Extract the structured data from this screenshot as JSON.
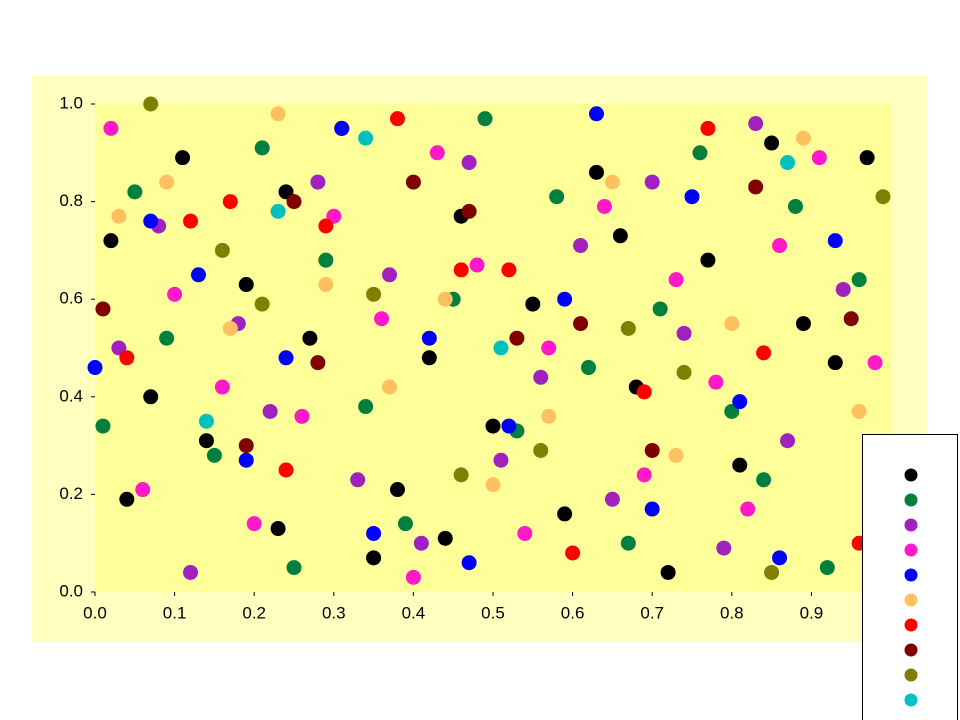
{
  "chart_data": {
    "type": "scatter",
    "xlim": [
      0,
      1
    ],
    "ylim": [
      0,
      1
    ],
    "xticks": [
      {
        "value": 0,
        "label": "0.0"
      },
      {
        "value": 0.1,
        "label": "0.1"
      },
      {
        "value": 0.2,
        "label": "0.2"
      },
      {
        "value": 0.3,
        "label": "0.3"
      },
      {
        "value": 0.4,
        "label": "0.4"
      },
      {
        "value": 0.5,
        "label": "0.5"
      },
      {
        "value": 0.6,
        "label": "0.6"
      },
      {
        "value": 0.7,
        "label": "0.7"
      },
      {
        "value": 0.8,
        "label": "0.8"
      },
      {
        "value": 0.9,
        "label": "0.9"
      }
    ],
    "yticks": [
      {
        "value": 0,
        "label": "0.0"
      },
      {
        "value": 0.2,
        "label": "0.2"
      },
      {
        "value": 0.4,
        "label": "0.4"
      },
      {
        "value": 0.6,
        "label": "0.6"
      },
      {
        "value": 0.8,
        "label": "0.8"
      },
      {
        "value": 1,
        "label": "1.0"
      }
    ],
    "legend": "bottom-right",
    "series": [
      {
        "color": "#000000",
        "x": [
          0.02,
          0.07,
          0.11,
          0.14,
          0.19,
          0.23,
          0.27,
          0.31,
          0.35,
          0.38,
          0.42,
          0.46,
          0.5,
          0.55,
          0.59,
          0.63,
          0.68,
          0.72,
          0.77,
          0.81,
          0.85,
          0.89,
          0.97,
          0.04,
          0.24,
          0.44,
          0.66,
          0.93
        ],
        "values": [
          0.72,
          0.4,
          0.89,
          0.31,
          0.63,
          0.13,
          0.52,
          0.95,
          0.07,
          0.21,
          0.48,
          0.77,
          0.34,
          0.59,
          0.16,
          0.86,
          0.42,
          0.04,
          0.68,
          0.26,
          0.92,
          0.55,
          0.89,
          0.19,
          0.82,
          0.11,
          0.73,
          0.47
        ]
      },
      {
        "color": "#007f3f",
        "x": [
          0.05,
          0.09,
          0.15,
          0.21,
          0.25,
          0.29,
          0.34,
          0.39,
          0.45,
          0.49,
          0.53,
          0.58,
          0.62,
          0.67,
          0.71,
          0.76,
          0.8,
          0.84,
          0.88,
          0.92,
          0.96,
          0.01
        ],
        "values": [
          0.82,
          0.52,
          0.28,
          0.91,
          0.05,
          0.68,
          0.38,
          0.14,
          0.6,
          0.97,
          0.33,
          0.81,
          0.46,
          0.1,
          0.58,
          0.9,
          0.37,
          0.23,
          0.79,
          0.05,
          0.64,
          0.34
        ]
      },
      {
        "color": "#a020c0",
        "x": [
          0.03,
          0.08,
          0.12,
          0.18,
          0.22,
          0.28,
          0.33,
          0.37,
          0.41,
          0.47,
          0.51,
          0.56,
          0.61,
          0.65,
          0.7,
          0.74,
          0.79,
          0.83,
          0.87,
          0.94
        ],
        "values": [
          0.5,
          0.75,
          0.04,
          0.55,
          0.37,
          0.84,
          0.23,
          0.65,
          0.1,
          0.88,
          0.27,
          0.44,
          0.71,
          0.19,
          0.84,
          0.53,
          0.09,
          0.96,
          0.31,
          0.62
        ]
      },
      {
        "color": "#ff19c8",
        "x": [
          0.02,
          0.06,
          0.1,
          0.16,
          0.2,
          0.26,
          0.3,
          0.36,
          0.4,
          0.43,
          0.48,
          0.54,
          0.57,
          0.64,
          0.69,
          0.73,
          0.78,
          0.82,
          0.86,
          0.91,
          0.98
        ],
        "values": [
          0.95,
          0.21,
          0.61,
          0.42,
          0.14,
          0.36,
          0.77,
          0.56,
          0.03,
          0.9,
          0.67,
          0.12,
          0.5,
          0.79,
          0.24,
          0.64,
          0.43,
          0.17,
          0.71,
          0.89,
          0.47
        ]
      },
      {
        "color": "#0000ff",
        "x": [
          0.0,
          0.07,
          0.13,
          0.19,
          0.24,
          0.31,
          0.35,
          0.42,
          0.47,
          0.52,
          0.59,
          0.63,
          0.7,
          0.75,
          0.81,
          0.86,
          0.93
        ],
        "values": [
          0.46,
          0.76,
          0.65,
          0.27,
          0.48,
          0.95,
          0.12,
          0.52,
          0.06,
          0.34,
          0.6,
          0.98,
          0.17,
          0.81,
          0.39,
          0.07,
          0.72
        ]
      },
      {
        "color": "#ffc060",
        "x": [
          0.03,
          0.09,
          0.17,
          0.23,
          0.29,
          0.37,
          0.44,
          0.5,
          0.57,
          0.65,
          0.73,
          0.8,
          0.89,
          0.96
        ],
        "values": [
          0.77,
          0.84,
          0.54,
          0.98,
          0.63,
          0.42,
          0.6,
          0.22,
          0.36,
          0.84,
          0.28,
          0.55,
          0.93,
          0.37
        ]
      },
      {
        "color": "#ff0000",
        "x": [
          0.04,
          0.12,
          0.17,
          0.24,
          0.29,
          0.38,
          0.46,
          0.52,
          0.6,
          0.69,
          0.77,
          0.84,
          0.96
        ],
        "values": [
          0.48,
          0.76,
          0.8,
          0.25,
          0.75,
          0.97,
          0.66,
          0.66,
          0.08,
          0.41,
          0.95,
          0.49,
          0.1
        ]
      },
      {
        "color": "#800000",
        "x": [
          0.01,
          0.19,
          0.25,
          0.28,
          0.4,
          0.47,
          0.53,
          0.61,
          0.7,
          0.83,
          0.95
        ],
        "values": [
          0.58,
          0.3,
          0.8,
          0.47,
          0.84,
          0.78,
          0.52,
          0.55,
          0.29,
          0.83,
          0.56
        ]
      },
      {
        "color": "#808000",
        "x": [
          0.07,
          0.16,
          0.21,
          0.35,
          0.46,
          0.56,
          0.67,
          0.74,
          0.85,
          0.99
        ],
        "values": [
          1.0,
          0.7,
          0.59,
          0.61,
          0.24,
          0.29,
          0.54,
          0.45,
          0.04,
          0.81
        ]
      },
      {
        "color": "#00c0c0",
        "x": [
          0.14,
          0.23,
          0.34,
          0.51,
          0.87
        ],
        "values": [
          0.35,
          0.78,
          0.93,
          0.5,
          0.88
        ]
      }
    ]
  }
}
